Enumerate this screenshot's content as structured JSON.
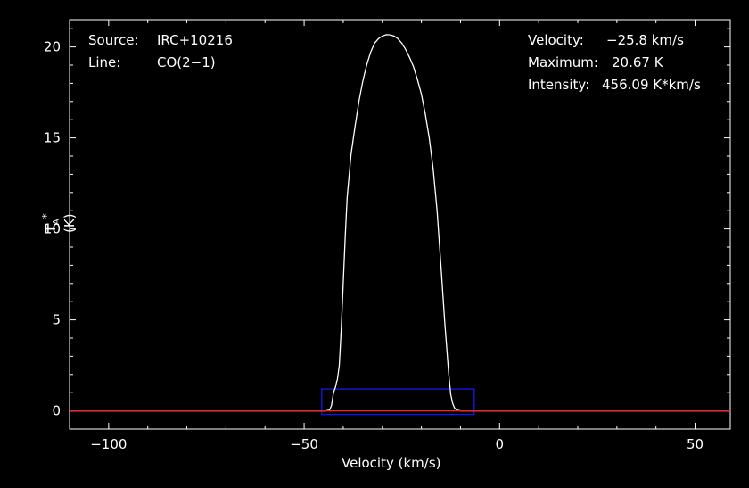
{
  "info": {
    "source_label": "Source:",
    "source_value": "IRC+10216",
    "line_label": "Line:",
    "line_value": "CO(2−1)",
    "velocity_label": "Velocity:",
    "velocity_value": "−25.8 km/s",
    "maximum_label": "Maximum:",
    "maximum_value": "20.67 K",
    "intensity_label": "Intensity:",
    "intensity_value": "456.09 K*km/s"
  },
  "chart_data": {
    "type": "line",
    "xlabel": "Velocity (km/s)",
    "ylabel_main": "T",
    "ylabel_sub": "A",
    "ylabel_sup": "*",
    "ylabel_unit": "(K)",
    "xlim": [
      -110,
      59
    ],
    "ylim": [
      -1,
      21.5
    ],
    "x_ticks": [
      -100,
      -50,
      0,
      50
    ],
    "x_tick_labels": [
      "−100",
      "−50",
      "0",
      "50"
    ],
    "y_ticks": [
      0,
      5,
      10,
      15,
      20
    ],
    "y_tick_labels": [
      "0",
      "5",
      "10",
      "15",
      "20"
    ],
    "series": [
      {
        "color": "#ffffff",
        "x": [
          -110,
          -44.5,
          -43.5,
          -43,
          -42.5,
          -42,
          -41.7,
          -41.5,
          -41,
          -40.5,
          -40,
          -39.5,
          -39,
          -38,
          -37,
          -36,
          -35,
          -34,
          -33,
          -32,
          -31,
          -30,
          -29,
          -28,
          -27,
          -26,
          -25,
          -24,
          -23,
          -22,
          -21,
          -20,
          -19,
          -18,
          -17,
          -16,
          -15,
          -14,
          -13,
          -12.5,
          -12,
          -11.5,
          -11,
          -10,
          59
        ],
        "y": [
          0,
          0,
          0.05,
          0.3,
          1.0,
          1.3,
          1.6,
          1.7,
          2.5,
          4.5,
          7,
          9.5,
          11.7,
          14.1,
          15.6,
          17.0,
          18.1,
          19.0,
          19.7,
          20.2,
          20.45,
          20.6,
          20.67,
          20.66,
          20.6,
          20.45,
          20.2,
          19.85,
          19.4,
          18.9,
          18.2,
          17.4,
          16.3,
          15.0,
          13.3,
          11.0,
          8.0,
          4.8,
          2.0,
          0.9,
          0.4,
          0.15,
          0.05,
          0,
          0
        ]
      },
      {
        "color": "#ff2020",
        "x": [
          -110,
          59
        ],
        "y": [
          0,
          0
        ]
      }
    ],
    "window": {
      "color": "#1a1aff",
      "x": [
        -45.5,
        -6.5
      ],
      "y": [
        -0.2,
        1.2
      ]
    }
  }
}
